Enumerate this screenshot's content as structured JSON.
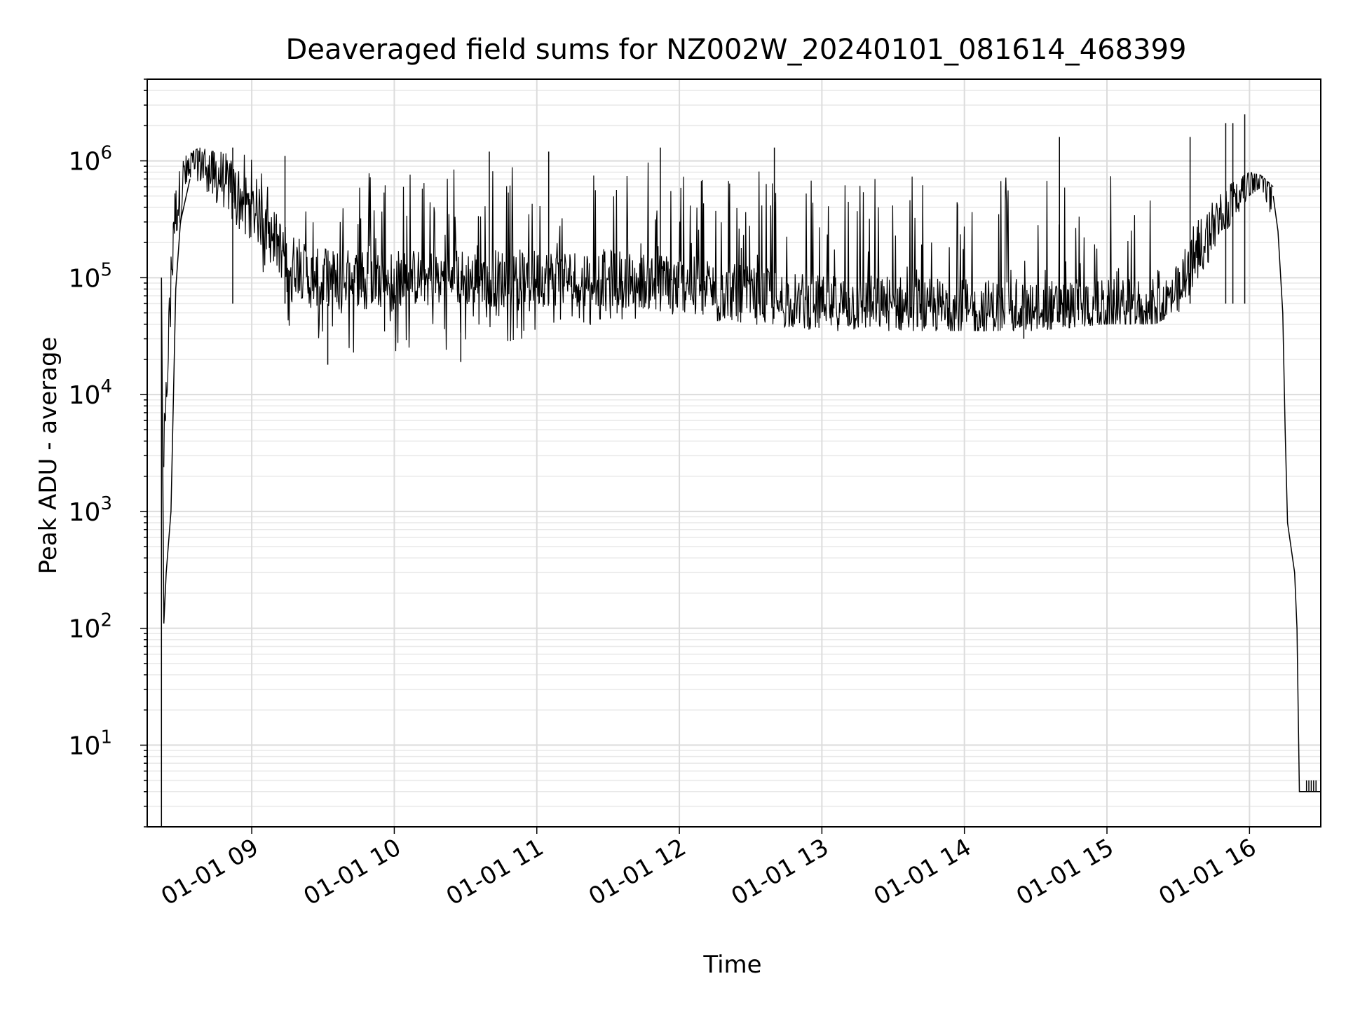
{
  "chart_data": {
    "type": "line",
    "title": "Deaveraged field sums for NZ002W_20240101_081614_468399",
    "xlabel": "Time",
    "ylabel": "Peak ADU - average",
    "yscale": "log",
    "ylim": [
      2,
      5000000
    ],
    "xlim": [
      "2024-01-01T08:16",
      "2024-01-01T16:30"
    ],
    "grid": true,
    "minor_grid": true,
    "line_color": "#000000",
    "x_ticks": [
      {
        "time": "2024-01-01T09:00",
        "label": "01-01 09"
      },
      {
        "time": "2024-01-01T10:00",
        "label": "01-01 10"
      },
      {
        "time": "2024-01-01T11:00",
        "label": "01-01 11"
      },
      {
        "time": "2024-01-01T12:00",
        "label": "01-01 12"
      },
      {
        "time": "2024-01-01T13:00",
        "label": "01-01 13"
      },
      {
        "time": "2024-01-01T14:00",
        "label": "01-01 14"
      },
      {
        "time": "2024-01-01T15:00",
        "label": "01-01 15"
      },
      {
        "time": "2024-01-01T16:00",
        "label": "01-01 16"
      }
    ],
    "y_ticks": [
      {
        "value": 10,
        "base": "10",
        "exp": "1"
      },
      {
        "value": 100,
        "base": "10",
        "exp": "2"
      },
      {
        "value": 1000,
        "base": "10",
        "exp": "3"
      },
      {
        "value": 10000,
        "base": "10",
        "exp": "4"
      },
      {
        "value": 100000,
        "base": "10",
        "exp": "5"
      },
      {
        "value": 1000000,
        "base": "10",
        "exp": "6"
      }
    ],
    "series": [
      {
        "style": "envelope",
        "points": [
          {
            "t": "2024-01-01T08:23",
            "low": 1000,
            "high": 10000,
            "mid": 3000
          },
          {
            "t": "2024-01-01T08:27",
            "low": 100000,
            "high": 600000,
            "mid": 300000
          },
          {
            "t": "2024-01-01T08:32",
            "low": 500000,
            "high": 1100000,
            "mid": 800000
          },
          {
            "t": "2024-01-01T08:38",
            "low": 700000,
            "high": 1300000,
            "mid": 1000000
          },
          {
            "t": "2024-01-01T08:45",
            "low": 400000,
            "high": 1200000,
            "mid": 800000
          },
          {
            "t": "2024-01-01T08:55",
            "low": 250000,
            "high": 1200000,
            "mid": 500000
          },
          {
            "t": "2024-01-01T09:05",
            "low": 100000,
            "high": 900000,
            "mid": 300000
          },
          {
            "t": "2024-01-01T09:15",
            "low": 40000,
            "high": 600000,
            "mid": 150000
          },
          {
            "t": "2024-01-01T09:25",
            "low": 25000,
            "high": 500000,
            "mid": 100000
          },
          {
            "t": "2024-01-01T09:40",
            "low": 22000,
            "high": 900000,
            "mid": 100000
          },
          {
            "t": "2024-01-01T10:00",
            "low": 22000,
            "high": 1000000,
            "mid": 100000
          },
          {
            "t": "2024-01-01T10:30",
            "low": 25000,
            "high": 1000000,
            "mid": 100000
          },
          {
            "t": "2024-01-01T11:00",
            "low": 30000,
            "high": 1000000,
            "mid": 100000
          },
          {
            "t": "2024-01-01T11:30",
            "low": 40000,
            "high": 1000000,
            "mid": 100000
          },
          {
            "t": "2024-01-01T12:00",
            "low": 40000,
            "high": 1000000,
            "mid": 90000
          },
          {
            "t": "2024-01-01T12:30",
            "low": 40000,
            "high": 900000,
            "mid": 70000
          },
          {
            "t": "2024-01-01T13:00",
            "low": 35000,
            "high": 900000,
            "mid": 60000
          },
          {
            "t": "2024-01-01T13:30",
            "low": 35000,
            "high": 900000,
            "mid": 60000
          },
          {
            "t": "2024-01-01T14:00",
            "low": 35000,
            "high": 900000,
            "mid": 55000
          },
          {
            "t": "2024-01-01T14:30",
            "low": 35000,
            "high": 800000,
            "mid": 55000
          },
          {
            "t": "2024-01-01T15:00",
            "low": 40000,
            "high": 800000,
            "mid": 55000
          },
          {
            "t": "2024-01-01T15:20",
            "low": 40000,
            "high": 700000,
            "mid": 55000
          },
          {
            "t": "2024-01-01T15:30",
            "low": 50000,
            "high": 150000,
            "mid": 70000
          },
          {
            "t": "2024-01-01T15:40",
            "low": 100000,
            "high": 400000,
            "mid": 200000
          },
          {
            "t": "2024-01-01T15:50",
            "low": 250000,
            "high": 600000,
            "mid": 400000
          },
          {
            "t": "2024-01-01T16:00",
            "low": 500000,
            "high": 800000,
            "mid": 700000
          },
          {
            "t": "2024-01-01T16:05",
            "low": 600000,
            "high": 750000,
            "mid": 700000
          },
          {
            "t": "2024-01-01T16:10",
            "low": 300000,
            "high": 600000,
            "mid": 500000
          }
        ]
      },
      {
        "style": "line",
        "points": [
          {
            "t": "2024-01-01T08:22",
            "v": 2
          },
          {
            "t": "2024-01-01T08:22",
            "v": 100000
          },
          {
            "t": "2024-01-01T08:23",
            "v": 110
          },
          {
            "t": "2024-01-01T08:24",
            "v": 300
          },
          {
            "t": "2024-01-01T08:26",
            "v": 1000
          },
          {
            "t": "2024-01-01T08:28",
            "v": 80000
          },
          {
            "t": "2024-01-01T08:30",
            "v": 300000
          },
          {
            "t": "2024-01-01T08:34",
            "v": 700000
          }
        ]
      },
      {
        "style": "line",
        "points": [
          {
            "t": "2024-01-01T16:10",
            "v": 500000
          },
          {
            "t": "2024-01-01T16:12",
            "v": 250000
          },
          {
            "t": "2024-01-01T16:14",
            "v": 50000
          },
          {
            "t": "2024-01-01T16:15",
            "v": 5000
          },
          {
            "t": "2024-01-01T16:16",
            "v": 800
          },
          {
            "t": "2024-01-01T16:19",
            "v": 300
          },
          {
            "t": "2024-01-01T16:20",
            "v": 100
          },
          {
            "t": "2024-01-01T16:21",
            "v": 4
          },
          {
            "t": "2024-01-01T16:30",
            "v": 4
          }
        ]
      }
    ],
    "spikes": [
      {
        "t": "2024-01-01T08:52",
        "v": 1300000
      },
      {
        "t": "2024-01-01T09:14",
        "v": 1100000
      },
      {
        "t": "2024-01-01T10:40",
        "v": 1200000
      },
      {
        "t": "2024-01-01T11:05",
        "v": 1200000
      },
      {
        "t": "2024-01-01T11:52",
        "v": 1300000
      },
      {
        "t": "2024-01-01T12:40",
        "v": 1300000
      },
      {
        "t": "2024-01-01T14:40",
        "v": 1600000
      },
      {
        "t": "2024-01-01T15:35",
        "v": 1600000
      },
      {
        "t": "2024-01-01T15:50",
        "v": 2100000
      },
      {
        "t": "2024-01-01T15:53",
        "v": 2100000
      },
      {
        "t": "2024-01-01T15:58",
        "v": 2500000
      },
      {
        "t": "2024-01-01T14:25",
        "v": 30000
      },
      {
        "t": "2024-01-01T09:32",
        "v": 18000
      },
      {
        "t": "2024-01-01T10:28",
        "v": 19000
      },
      {
        "t": "2024-01-01T16:24",
        "v": 5
      },
      {
        "t": "2024-01-01T16:25",
        "v": 5
      },
      {
        "t": "2024-01-01T16:26",
        "v": 5
      },
      {
        "t": "2024-01-01T16:27",
        "v": 5
      },
      {
        "t": "2024-01-01T16:28",
        "v": 5
      }
    ]
  }
}
